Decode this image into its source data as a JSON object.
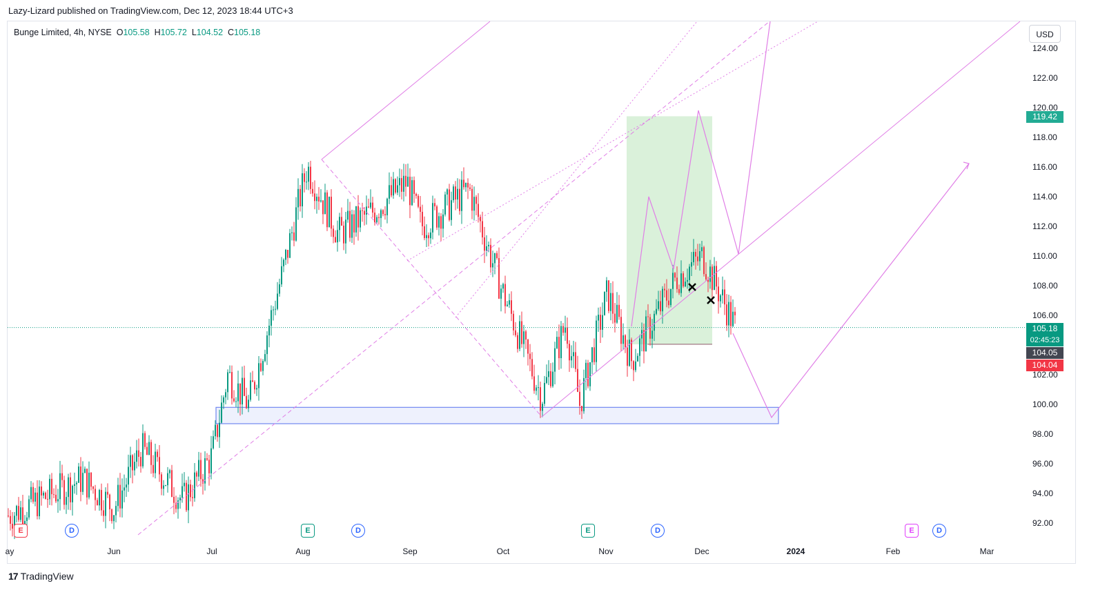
{
  "publish_line": "Lazy-Lizard published on TradingView.com, Dec 12, 2023 18:44 UTC+3",
  "legend": {
    "symbol": "Bunge Limited, 4h, NYSE",
    "o_label": "O",
    "o": "105.58",
    "h_label": "H",
    "h": "105.72",
    "l_label": "L",
    "l": "104.52",
    "c_label": "C",
    "c": "105.18"
  },
  "currency": "USD",
  "y_axis_labels": [
    "124.00",
    "122.00",
    "120.00",
    "118.00",
    "116.00",
    "114.00",
    "112.00",
    "110.00",
    "108.00",
    "106.00",
    "102.00",
    "100.00",
    "98.00",
    "96.00",
    "94.00",
    "92.00"
  ],
  "price_tags": {
    "target": "119.42",
    "last": "105.18",
    "countdown": "02:45:23",
    "level_gray": "104.05",
    "level_red": "104.04"
  },
  "x_axis_labels": [
    "ay",
    "Jun",
    "Jul",
    "Aug",
    "Sep",
    "Oct",
    "Nov",
    "Dec",
    "2024",
    "Feb",
    "Mar"
  ],
  "events": [
    {
      "type": "E",
      "color": "red"
    },
    {
      "type": "D"
    },
    {
      "type": "E",
      "color": "green"
    },
    {
      "type": "D"
    },
    {
      "type": "E",
      "color": "green"
    },
    {
      "type": "D"
    },
    {
      "type": "E",
      "color": "magenta"
    },
    {
      "type": "D"
    }
  ],
  "brand": {
    "logo": "17",
    "name": "TradingView"
  },
  "colors": {
    "up": "#089981",
    "down": "#f23645",
    "drawing": "#e07ee6",
    "support": "#6f87f0",
    "target_zone": "#d3efd3",
    "last_price": "#089981"
  },
  "chart_data": {
    "type": "candlestick",
    "symbol": "Bunge Limited",
    "interval": "4h",
    "exchange": "NYSE",
    "ylim": [
      90.5,
      124.5
    ],
    "close_path": [
      {
        "month": "May",
        "close": 92.5
      },
      {
        "month": "late May",
        "close": 95.0
      },
      {
        "month": "Jun",
        "close": 93.0
      },
      {
        "month": "mid Jun",
        "close": 97.0
      },
      {
        "month": "late Jun",
        "close": 93.5
      },
      {
        "month": "Jul",
        "close": 96.5
      },
      {
        "month": "early Jul",
        "close": 102.0
      },
      {
        "month": "mid Jul",
        "close": 100.0
      },
      {
        "month": "late Jul",
        "close": 109.0
      },
      {
        "month": "Aug",
        "close": 116.0
      },
      {
        "month": "mid Aug",
        "close": 111.5
      },
      {
        "month": "late Aug",
        "close": 113.0
      },
      {
        "month": "Sep",
        "close": 115.0
      },
      {
        "month": "mid Sep",
        "close": 112.0
      },
      {
        "month": "late Sep",
        "close": 114.5
      },
      {
        "month": "early Oct",
        "close": 108.0
      },
      {
        "month": "mid Oct",
        "close": 100.5
      },
      {
        "month": "late Oct",
        "close": 105.5
      },
      {
        "month": "end Oct",
        "close": 100.0
      },
      {
        "month": "Nov",
        "close": 107.5
      },
      {
        "month": "mid Nov",
        "close": 103.0
      },
      {
        "month": "late Nov",
        "close": 108.5
      },
      {
        "month": "Dec",
        "close": 110.0
      },
      {
        "month": "Dec 12",
        "close": 105.18
      }
    ],
    "levels": {
      "last_close": 105.18,
      "target": 119.42,
      "level_a": 104.05,
      "level_b": 104.04,
      "support_zone": [
        98.7,
        99.8
      ]
    }
  }
}
